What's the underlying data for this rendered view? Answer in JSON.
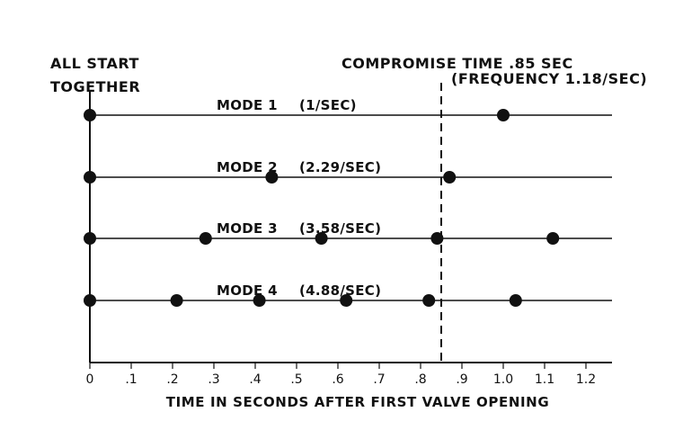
{
  "header": {
    "start_line1": "ALL START",
    "start_line2": "TOGETHER",
    "compromise_line1": "COMPROMISE TIME .85 SEC",
    "compromise_line2": "(FREQUENCY 1.18/SEC)"
  },
  "chart_data": {
    "type": "scatter",
    "title": "",
    "xlabel": "TIME IN SECONDS AFTER FIRST VALVE OPENING",
    "ylabel": "",
    "xlim": [
      0,
      1.3
    ],
    "x_ticks": [
      "0",
      ".1",
      ".2",
      ".3",
      ".4",
      ".5",
      ".6",
      ".7",
      ".8",
      ".9",
      "1.0",
      "1.1",
      "1.2"
    ],
    "compromise_time": 0.85,
    "grid": false,
    "series": [
      {
        "name": "MODE 1",
        "rate": "(1/SEC)",
        "x": [
          0,
          1.0
        ]
      },
      {
        "name": "MODE 2",
        "rate": "(2.29/SEC)",
        "x": [
          0,
          0.44,
          0.87
        ]
      },
      {
        "name": "MODE 3",
        "rate": "(3.58/SEC)",
        "x": [
          0,
          0.28,
          0.56,
          0.84,
          1.12
        ]
      },
      {
        "name": "MODE 4",
        "rate": "(4.88/SEC)",
        "x": [
          0,
          0.21,
          0.41,
          0.62,
          0.82,
          1.03
        ]
      }
    ]
  }
}
